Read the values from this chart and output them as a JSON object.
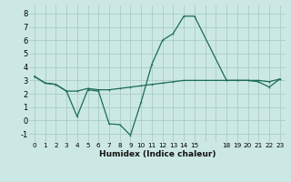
{
  "xlabel": "Humidex (Indice chaleur)",
  "bg_color": "#cce8e4",
  "grid_color": "#aaccc8",
  "line_color": "#1a6b5a",
  "x_ticks": [
    0,
    1,
    2,
    3,
    4,
    5,
    6,
    7,
    8,
    9,
    10,
    11,
    12,
    13,
    14,
    15,
    18,
    19,
    20,
    21,
    22,
    23
  ],
  "ylim": [
    -1.6,
    8.6
  ],
  "xlim": [
    -0.5,
    23.5
  ],
  "series1_x": [
    0,
    1,
    2,
    3,
    4,
    5,
    6,
    7,
    8,
    9,
    10,
    11,
    12,
    13,
    14,
    15,
    18,
    19,
    20,
    21,
    22,
    23
  ],
  "series1_y": [
    3.3,
    2.8,
    2.7,
    2.2,
    2.2,
    2.4,
    2.3,
    2.3,
    2.4,
    2.5,
    2.6,
    2.7,
    2.8,
    2.9,
    3.0,
    3.0,
    3.0,
    3.0,
    3.0,
    3.0,
    2.9,
    3.1
  ],
  "series2_x": [
    0,
    1,
    2,
    3,
    4,
    5,
    6,
    7,
    8,
    9,
    10,
    11,
    12,
    13,
    14,
    15,
    18,
    19,
    20,
    21,
    22,
    23
  ],
  "series2_y": [
    3.3,
    2.8,
    2.7,
    2.2,
    0.3,
    2.3,
    2.2,
    -0.25,
    -0.3,
    -1.1,
    1.4,
    4.2,
    6.0,
    6.5,
    7.8,
    7.8,
    3.0,
    3.0,
    3.0,
    2.9,
    2.5,
    3.1
  ],
  "yticks": [
    -1,
    0,
    1,
    2,
    3,
    4,
    5,
    6,
    7,
    8
  ]
}
